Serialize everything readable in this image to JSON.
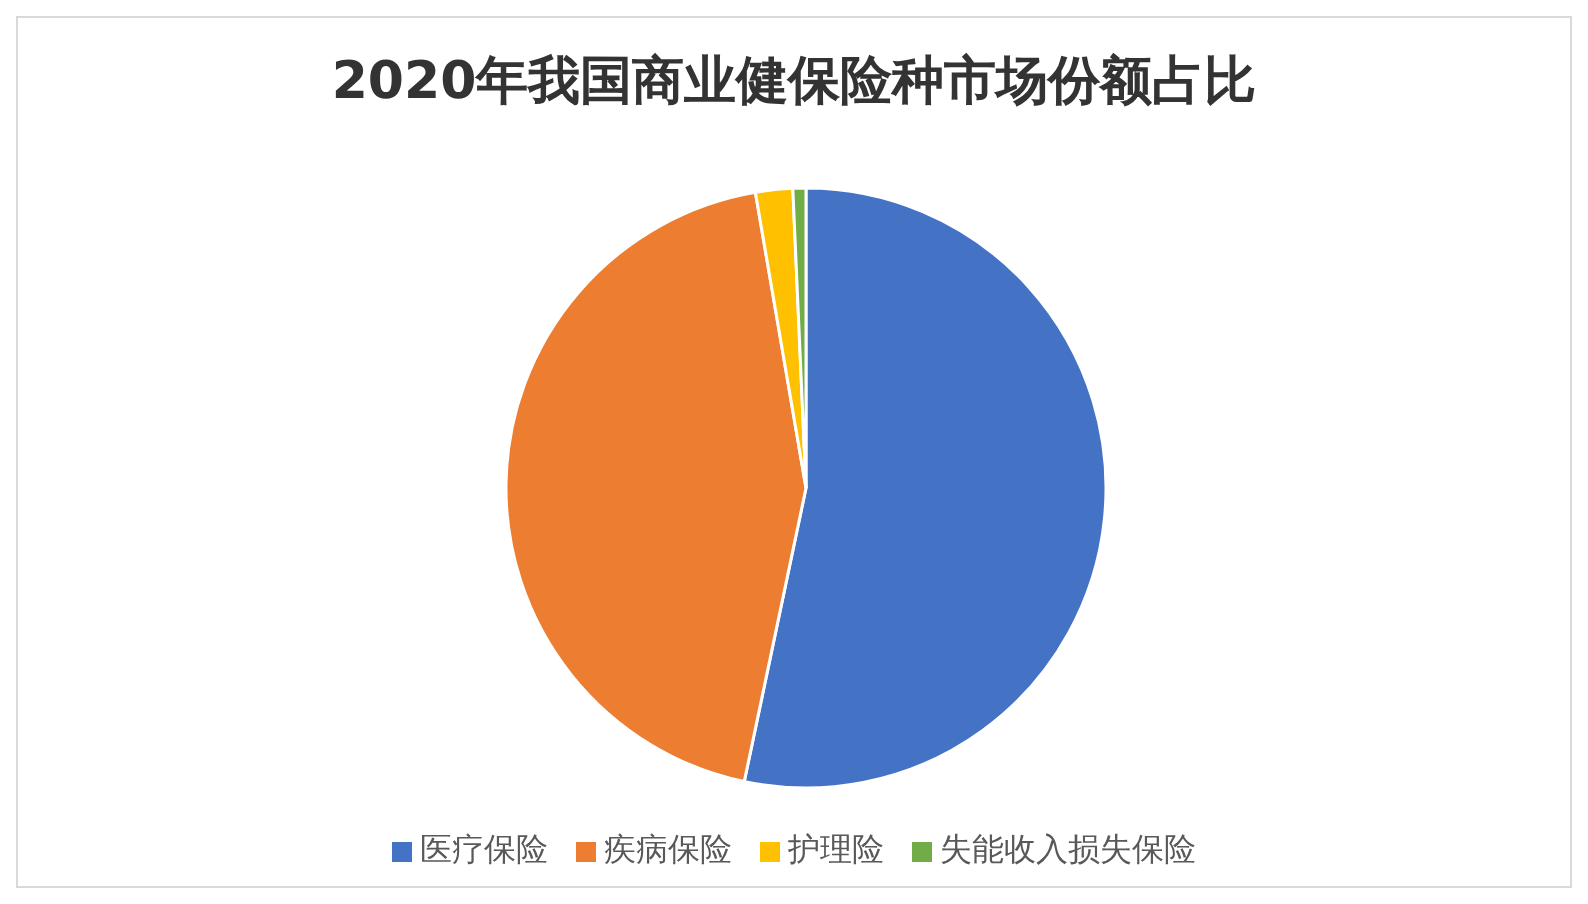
{
  "chart_data": {
    "type": "pie",
    "title": "2020年我国商业健保险种市场份额占比",
    "categories": [
      "医疗保险",
      "疾病保险",
      "护理险",
      "失能收入损失保险"
    ],
    "values": [
      53.3,
      44.0,
      2.0,
      0.7
    ],
    "colors": [
      "#4472c4",
      "#ed7d31",
      "#ffc000",
      "#70ad47"
    ],
    "legend": "bottom"
  }
}
